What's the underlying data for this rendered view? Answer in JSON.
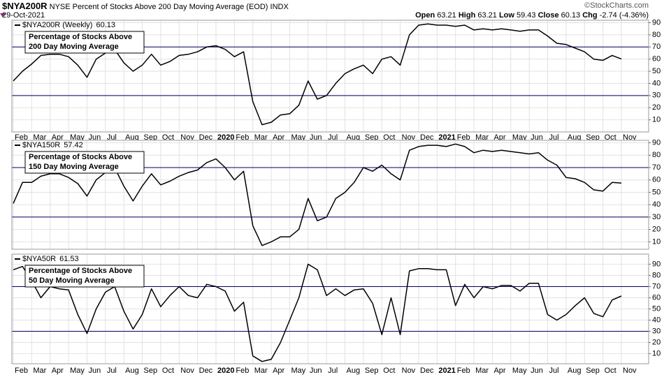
{
  "header": {
    "symbol": "$NYA200R",
    "description": "NYSE Percent of Stocks Above 200 Day Moving Average (EOD) INDX",
    "date": "29-Oct-2021",
    "brand": "©StockCharts.com",
    "quote": [
      {
        "label": "Open",
        "value": "63.21"
      },
      {
        "label": "High",
        "value": "63.21"
      },
      {
        "label": "Low",
        "value": "59.43"
      },
      {
        "label": "Close",
        "value": "60.13"
      },
      {
        "label": "Chg",
        "value": "-2.74 (-4.36%)"
      }
    ]
  },
  "chart_data": [
    {
      "type": "line",
      "annotation": [
        "Percentage of Stocks Above",
        "200 Day Moving Average"
      ],
      "categories": [
        "Feb",
        null,
        "Mar",
        null,
        "Apr",
        null,
        "May",
        null,
        "Jun",
        null,
        "Jul",
        null,
        "Aug",
        null,
        "Sep",
        null,
        "Oct",
        null,
        "Nov",
        null,
        "Dec",
        null,
        "2020",
        null,
        "Feb",
        null,
        "Mar",
        null,
        "Apr",
        null,
        "May",
        null,
        "Jun",
        null,
        "Jul",
        null,
        "Aug",
        null,
        "Sep",
        null,
        "Oct",
        null,
        "Nov",
        null,
        "Dec",
        null,
        "2021",
        null,
        "Feb",
        null,
        "Mar",
        null,
        "Apr",
        null,
        "May",
        null,
        "Jun",
        null,
        "Jul",
        null,
        "Aug",
        null,
        "Sep",
        null,
        "Oct",
        null,
        "Nov"
      ],
      "series": [
        {
          "name": "$NYA200R (Weekly)",
          "color": "#000000",
          "values": [
            42,
            50,
            56,
            63,
            64,
            64,
            62,
            55,
            45,
            60,
            65,
            68,
            57,
            50,
            55,
            64,
            55,
            58,
            63,
            64,
            66,
            70,
            71,
            68,
            62,
            66,
            25,
            6,
            8,
            14,
            15,
            22,
            42,
            27,
            30,
            40,
            48,
            52,
            55,
            48,
            60,
            62,
            55,
            80,
            88,
            89,
            88,
            88,
            87,
            88,
            84,
            85,
            84,
            85,
            84,
            83,
            84,
            84,
            79,
            73,
            72,
            69,
            66,
            60,
            59,
            63,
            60.13
          ]
        }
      ],
      "ylim": [
        0,
        92
      ],
      "yticks": [
        10,
        20,
        30,
        40,
        50,
        60,
        70,
        80,
        90
      ],
      "reference_lines": [
        70,
        30
      ],
      "reference_color": "#000066",
      "grid": true
    },
    {
      "type": "line",
      "annotation": [
        "Percentage of Stocks Above",
        "150 Day Moving Average"
      ],
      "series": [
        {
          "name": "$NYA150R",
          "color": "#000000",
          "values": [
            41,
            58,
            58,
            63,
            65,
            65,
            62,
            57,
            47,
            60,
            66,
            70,
            55,
            43,
            55,
            65,
            56,
            59,
            63,
            66,
            68,
            74,
            77,
            70,
            60,
            67,
            23,
            7,
            10,
            14,
            14,
            20,
            45,
            27,
            30,
            45,
            50,
            58,
            70,
            67,
            72,
            65,
            60,
            84,
            87,
            88,
            88,
            87,
            89,
            87,
            82,
            84,
            83,
            84,
            83,
            82,
            81,
            82,
            76,
            72,
            62,
            61,
            58,
            52,
            51,
            58,
            57.42
          ]
        }
      ],
      "ylim": [
        4,
        92
      ],
      "yticks": [
        10,
        20,
        30,
        40,
        50,
        60,
        70,
        80,
        90
      ],
      "reference_lines": [
        70,
        30
      ],
      "reference_color": "#000066",
      "grid": true
    },
    {
      "type": "line",
      "annotation": [
        "Percentage of Stocks Above",
        "50 Day Moving Average"
      ],
      "categories": [
        "Feb",
        null,
        "Mar",
        null,
        "Apr",
        null,
        "May",
        null,
        "Jun",
        null,
        "Jul",
        null,
        "Aug",
        null,
        "Sep",
        null,
        "Oct",
        null,
        "Nov",
        null,
        "Dec",
        null,
        "2020",
        null,
        "Feb",
        null,
        "Mar",
        null,
        "Apr",
        null,
        "May",
        null,
        "Jun",
        null,
        "Jul",
        null,
        "Aug",
        null,
        "Sep",
        null,
        "Oct",
        null,
        "Nov",
        null,
        "Dec",
        null,
        "2021",
        null,
        "Feb",
        null,
        "Mar",
        null,
        "Apr",
        null,
        "May",
        null,
        "Jun",
        null,
        "Jul",
        null,
        "Aug",
        null,
        "Sep",
        null,
        "Oct",
        null,
        "Nov"
      ],
      "series": [
        {
          "name": "$NYA50R",
          "color": "#000000",
          "values": [
            85,
            88,
            75,
            60,
            70,
            68,
            67,
            45,
            28,
            50,
            65,
            70,
            48,
            32,
            45,
            68,
            52,
            62,
            70,
            62,
            60,
            72,
            70,
            66,
            48,
            56,
            8,
            3,
            5,
            20,
            40,
            60,
            90,
            85,
            62,
            68,
            62,
            67,
            68,
            55,
            27,
            60,
            27,
            84,
            86,
            86,
            85,
            85,
            53,
            72,
            60,
            70,
            68,
            71,
            71,
            66,
            73,
            73,
            45,
            40,
            45,
            53,
            60,
            46,
            43,
            58,
            61.53
          ]
        }
      ],
      "ylim": [
        1,
        99
      ],
      "yticks": [
        10,
        20,
        30,
        40,
        50,
        60,
        70,
        80,
        90
      ],
      "reference_lines": [
        70,
        30
      ],
      "reference_color": "#000066",
      "grid": true
    }
  ]
}
